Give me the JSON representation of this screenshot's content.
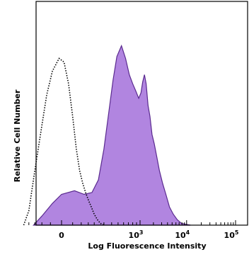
{
  "chart_data": {
    "type": "area",
    "xlabel": "Log Fluorescence Intensity",
    "ylabel": "Relative Cell Number",
    "x_scale": "biexponential",
    "x_ticks": [
      {
        "value": 0,
        "label": "0"
      },
      {
        "value": 1000,
        "label": "10^3",
        "base": "10",
        "exp": "3"
      },
      {
        "value": 10000,
        "label": "10^4",
        "base": "10",
        "exp": "4"
      },
      {
        "value": 100000,
        "label": "10^5",
        "base": "10",
        "exp": "5"
      }
    ],
    "ylim": [
      0,
      1
    ],
    "grid": false,
    "series": [
      {
        "style": "filled",
        "color": "#b185e0",
        "edge_color": "#5a2a8f",
        "x": [
          -160,
          -100,
          -40,
          0,
          60,
          120,
          180,
          240,
          300,
          360,
          420,
          480,
          560,
          640,
          720,
          800,
          880,
          960,
          1050,
          1150,
          1260,
          1380,
          1520,
          1680,
          1860,
          2080,
          2350,
          2700,
          3150,
          3700,
          4400,
          5300,
          6400,
          7800,
          9500,
          12000
        ],
        "y": [
          0.0,
          0.05,
          0.12,
          0.17,
          0.19,
          0.17,
          0.18,
          0.25,
          0.42,
          0.62,
          0.8,
          0.93,
          0.99,
          0.92,
          0.83,
          0.78,
          0.74,
          0.7,
          0.73,
          0.79,
          0.83,
          0.78,
          0.66,
          0.6,
          0.5,
          0.45,
          0.38,
          0.3,
          0.23,
          0.17,
          0.1,
          0.06,
          0.03,
          0.01,
          0.005,
          0.0
        ]
      },
      {
        "style": "dotted",
        "color": "#000000",
        "x": [
          -250,
          -200,
          -150,
          -100,
          -70,
          -40,
          -10,
          10,
          30,
          50,
          70,
          90,
          110,
          130,
          150,
          175,
          200,
          230,
          260,
          300
        ],
        "y": [
          0.0,
          0.08,
          0.3,
          0.55,
          0.72,
          0.85,
          0.92,
          0.9,
          0.78,
          0.6,
          0.42,
          0.3,
          0.23,
          0.18,
          0.14,
          0.1,
          0.06,
          0.03,
          0.01,
          0.0
        ]
      }
    ]
  }
}
